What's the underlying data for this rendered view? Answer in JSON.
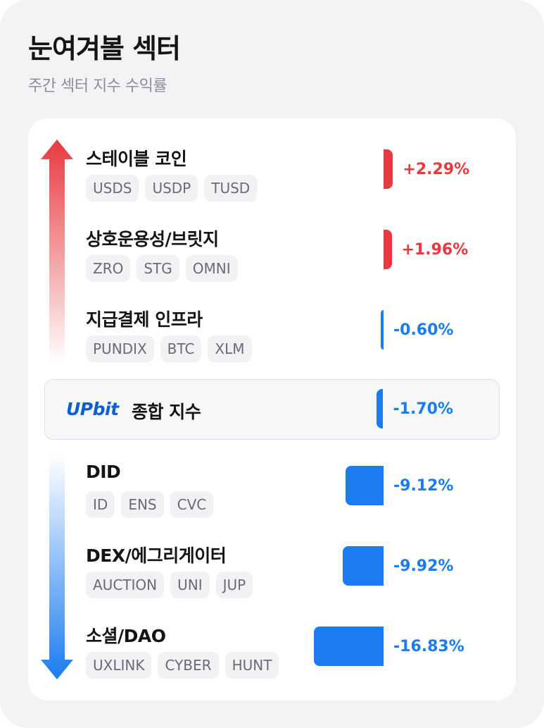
{
  "header": {
    "title": "눈여겨볼 섹터",
    "subtitle": "주간 섹터 지수 수익률"
  },
  "colors": {
    "positive": "#e8393f",
    "negative": "#1a7cf0",
    "upbit_brand": "#0b5fcf"
  },
  "icons": {
    "up_arrow": "gradient-up-arrow-icon",
    "down_arrow": "gradient-down-arrow-icon"
  },
  "gainers": [
    {
      "name": "스테이블 코인",
      "tokens": [
        "USDS",
        "USDP",
        "TUSD"
      ],
      "value": 2.29,
      "label": "+2.29%"
    },
    {
      "name": "상호운용성/브릿지",
      "tokens": [
        "ZRO",
        "STG",
        "OMNI"
      ],
      "value": 1.96,
      "label": "+1.96%"
    },
    {
      "name": "지급결제 인프라",
      "tokens": [
        "PUNDIX",
        "BTC",
        "XLM"
      ],
      "value": -0.6,
      "label": "-0.60%"
    }
  ],
  "index": {
    "logo_text": "UPbit",
    "label": "종합 지수",
    "value": -1.7,
    "value_label": "-1.70%"
  },
  "losers": [
    {
      "name": "DID",
      "tokens": [
        "ID",
        "ENS",
        "CVC"
      ],
      "value": -9.12,
      "label": "-9.12%"
    },
    {
      "name": "DEX/에그리게이터",
      "tokens": [
        "AUCTION",
        "UNI",
        "JUP"
      ],
      "value": -9.92,
      "label": "-9.92%"
    },
    {
      "name": "소셜/DAO",
      "tokens": [
        "UXLINK",
        "CYBER",
        "HUNT"
      ],
      "value": -16.83,
      "label": "-16.83%"
    }
  ]
}
